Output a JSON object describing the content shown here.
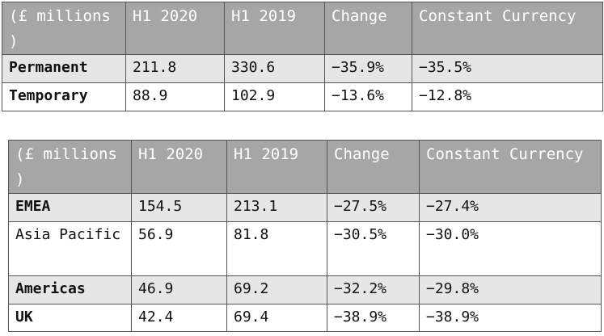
{
  "table1": {
    "headers": [
      "(£ millions )",
      "H1 2020",
      "H1 2019",
      "Change",
      "Constant Currency"
    ],
    "rows": [
      [
        "Permanent",
        "211.8",
        "330.6",
        "−35.9%",
        "−35.5%"
      ],
      [
        "Temporary",
        "88.9",
        "102.9",
        "−13.6%",
        "−12.8%"
      ]
    ]
  },
  "table2": {
    "headers": [
      "(£ millions )",
      "H1 2020",
      "H1 2019",
      "Change",
      "Constant Currency"
    ],
    "rows": [
      [
        "EMEA",
        "154.5",
        "213.1",
        "−27.5%",
        "−27.4%"
      ],
      [
        "Asia Pacific",
        "56.9",
        "81.8",
        "−30.5%",
        "−30.0%"
      ],
      [
        "Americas",
        "46.9",
        "69.2",
        "−32.2%",
        "−29.8%"
      ],
      [
        "UK",
        "42.4",
        "69.4",
        "−38.9%",
        "−38.9%"
      ]
    ]
  }
}
